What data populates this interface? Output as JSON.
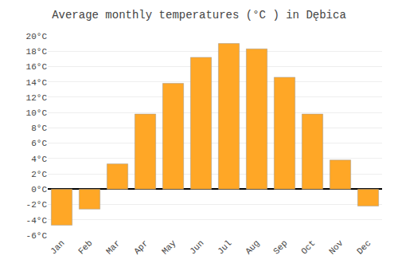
{
  "chart_data": {
    "type": "bar",
    "title": "Average monthly temperatures (°C ) in Dębica",
    "categories": [
      "Jan",
      "Feb",
      "Mar",
      "Apr",
      "May",
      "Jun",
      "Jul",
      "Aug",
      "Sep",
      "Oct",
      "Nov",
      "Dec"
    ],
    "values": [
      -4.7,
      -2.6,
      3.3,
      9.8,
      13.8,
      17.2,
      19.0,
      18.3,
      14.6,
      9.8,
      3.8,
      -2.2
    ],
    "color": "#FFA726",
    "ylim": [
      -6,
      20
    ],
    "yticks": [
      {
        "value": -6,
        "label": "-6°C"
      },
      {
        "value": -4,
        "label": "-4°C"
      },
      {
        "value": -2,
        "label": "-2°C"
      },
      {
        "value": 0,
        "label": "0°C"
      },
      {
        "value": 2,
        "label": "2°C"
      },
      {
        "value": 4,
        "label": "4°C"
      },
      {
        "value": 6,
        "label": "6°C"
      },
      {
        "value": 8,
        "label": "8°C"
      },
      {
        "value": 10,
        "label": "10°C"
      },
      {
        "value": 12,
        "label": "12°C"
      },
      {
        "value": 14,
        "label": "14°C"
      },
      {
        "value": 16,
        "label": "16°C"
      },
      {
        "value": 18,
        "label": "18°C"
      },
      {
        "value": 20,
        "label": "20°C"
      }
    ],
    "grid": true
  }
}
